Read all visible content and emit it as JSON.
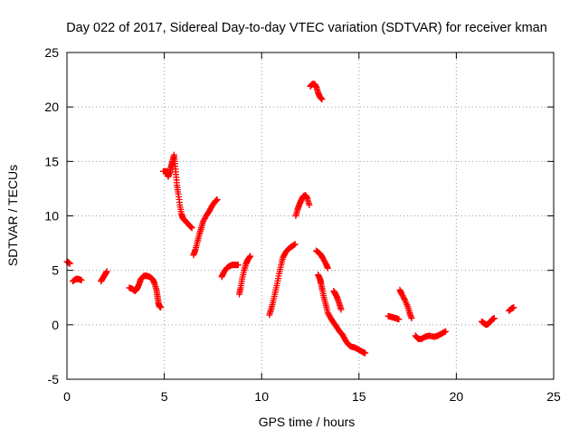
{
  "chart_data": {
    "type": "scatter",
    "title": "Day 022 of 2017, Sidereal Day-to-day VTEC variation (SDTVAR) for receiver kman",
    "xlabel": "GPS time / hours",
    "ylabel": "SDTVAR / TECUs",
    "xlim": [
      0,
      25
    ],
    "ylim": [
      -5,
      25
    ],
    "xticks": [
      0,
      5,
      10,
      15,
      20,
      25
    ],
    "yticks": [
      -5,
      0,
      5,
      10,
      15,
      20,
      25
    ],
    "xtick_labels": [
      "0",
      "5",
      "10",
      "15",
      "20",
      "25"
    ],
    "ytick_labels": [
      "-5",
      "0",
      "5",
      "10",
      "15",
      "20",
      "25"
    ],
    "grid": true,
    "marker": "+",
    "color": "#ff0000",
    "series": [
      {
        "name": "SDTVAR",
        "segments": [
          [
            [
              0.0,
              5.8
            ],
            [
              0.1,
              5.7
            ],
            [
              0.15,
              5.6
            ]
          ],
          [
            [
              0.3,
              4.0
            ],
            [
              0.45,
              4.2
            ],
            [
              0.6,
              4.2
            ],
            [
              0.75,
              4.1
            ]
          ],
          [
            [
              1.75,
              4.0
            ],
            [
              1.85,
              4.3
            ],
            [
              1.95,
              4.6
            ],
            [
              2.05,
              4.9
            ]
          ],
          [
            [
              3.2,
              3.4
            ],
            [
              3.35,
              3.3
            ],
            [
              3.5,
              3.1
            ],
            [
              3.6,
              3.3
            ],
            [
              3.7,
              3.7
            ],
            [
              3.8,
              4.2
            ],
            [
              3.95,
              4.5
            ],
            [
              4.1,
              4.5
            ],
            [
              4.25,
              4.4
            ],
            [
              4.4,
              4.2
            ],
            [
              4.5,
              3.8
            ],
            [
              4.6,
              3.2
            ],
            [
              4.65,
              2.6
            ],
            [
              4.7,
              2.0
            ],
            [
              4.75,
              1.7
            ],
            [
              4.82,
              1.6
            ]
          ],
          [
            [
              4.95,
              14.1
            ],
            [
              5.15,
              14.1
            ],
            [
              5.2,
              13.6
            ],
            [
              5.28,
              14.0
            ],
            [
              5.35,
              14.5
            ],
            [
              5.42,
              15.0
            ],
            [
              5.5,
              15.6
            ],
            [
              5.55,
              14.8
            ],
            [
              5.6,
              13.8
            ],
            [
              5.65,
              12.8
            ],
            [
              5.72,
              12.0
            ],
            [
              5.8,
              11.0
            ],
            [
              5.88,
              10.2
            ],
            [
              5.95,
              9.8
            ],
            [
              6.05,
              9.6
            ],
            [
              6.15,
              9.4
            ],
            [
              6.3,
              9.1
            ],
            [
              6.42,
              8.9
            ]
          ],
          [
            [
              6.5,
              6.4
            ],
            [
              6.6,
              6.9
            ],
            [
              6.7,
              7.6
            ],
            [
              6.8,
              8.3
            ],
            [
              6.9,
              8.9
            ],
            [
              7.0,
              9.5
            ],
            [
              7.15,
              10.0
            ],
            [
              7.3,
              10.4
            ],
            [
              7.45,
              10.9
            ],
            [
              7.6,
              11.3
            ],
            [
              7.72,
              11.5
            ]
          ],
          [
            [
              7.95,
              4.4
            ],
            [
              8.05,
              4.8
            ],
            [
              8.2,
              5.2
            ],
            [
              8.35,
              5.4
            ],
            [
              8.5,
              5.5
            ],
            [
              8.65,
              5.5
            ],
            [
              8.8,
              5.5
            ]
          ],
          [
            [
              8.85,
              2.8
            ],
            [
              8.92,
              3.4
            ],
            [
              9.0,
              4.2
            ],
            [
              9.1,
              5.0
            ],
            [
              9.2,
              5.6
            ],
            [
              9.3,
              6.0
            ],
            [
              9.42,
              6.3
            ]
          ],
          [
            [
              10.4,
              0.9
            ],
            [
              10.5,
              1.5
            ],
            [
              10.6,
              2.2
            ],
            [
              10.7,
              3.0
            ],
            [
              10.8,
              3.8
            ],
            [
              10.9,
              4.7
            ],
            [
              11.0,
              5.5
            ],
            [
              11.1,
              6.2
            ],
            [
              11.25,
              6.7
            ],
            [
              11.4,
              7.0
            ],
            [
              11.55,
              7.2
            ],
            [
              11.72,
              7.4
            ]
          ],
          [
            [
              11.75,
              10.0
            ],
            [
              11.85,
              10.6
            ],
            [
              11.95,
              11.1
            ],
            [
              12.05,
              11.5
            ],
            [
              12.15,
              11.8
            ],
            [
              12.25,
              11.9
            ],
            [
              12.35,
              11.6
            ],
            [
              12.45,
              11.0
            ]
          ],
          [
            [
              12.5,
              21.9
            ],
            [
              12.6,
              22.1
            ],
            [
              12.72,
              22.1
            ],
            [
              12.82,
              21.8
            ],
            [
              12.9,
              21.3
            ],
            [
              13.0,
              20.9
            ],
            [
              13.1,
              20.7
            ]
          ],
          [
            [
              12.8,
              6.8
            ],
            [
              12.95,
              6.6
            ],
            [
              13.05,
              6.4
            ],
            [
              13.15,
              6.1
            ],
            [
              13.3,
              5.6
            ],
            [
              13.4,
              5.2
            ]
          ],
          [
            [
              12.9,
              4.6
            ],
            [
              13.0,
              4.2
            ],
            [
              13.05,
              3.8
            ],
            [
              13.12,
              3.2
            ],
            [
              13.2,
              2.5
            ],
            [
              13.3,
              1.8
            ],
            [
              13.4,
              1.1
            ],
            [
              13.55,
              0.6
            ],
            [
              13.7,
              0.2
            ],
            [
              13.85,
              -0.2
            ],
            [
              14.0,
              -0.6
            ],
            [
              14.15,
              -0.9
            ],
            [
              14.3,
              -1.4
            ],
            [
              14.45,
              -1.8
            ],
            [
              14.6,
              -2.0
            ],
            [
              14.8,
              -2.1
            ],
            [
              15.0,
              -2.3
            ],
            [
              15.2,
              -2.5
            ],
            [
              15.32,
              -2.6
            ]
          ],
          [
            [
              13.7,
              3.1
            ],
            [
              13.8,
              2.8
            ],
            [
              13.9,
              2.4
            ],
            [
              14.0,
              1.9
            ],
            [
              14.08,
              1.4
            ]
          ],
          [
            [
              16.5,
              0.8
            ],
            [
              16.7,
              0.7
            ],
            [
              16.9,
              0.6
            ],
            [
              17.05,
              0.5
            ]
          ],
          [
            [
              17.1,
              3.2
            ],
            [
              17.2,
              2.8
            ],
            [
              17.35,
              2.3
            ],
            [
              17.5,
              1.7
            ],
            [
              17.6,
              1.1
            ],
            [
              17.7,
              0.6
            ]
          ],
          [
            [
              17.9,
              -1.0
            ],
            [
              18.05,
              -1.3
            ],
            [
              18.2,
              -1.3
            ],
            [
              18.4,
              -1.1
            ],
            [
              18.6,
              -1.0
            ],
            [
              18.85,
              -1.1
            ],
            [
              19.05,
              -1.0
            ],
            [
              19.25,
              -0.8
            ],
            [
              19.45,
              -0.6
            ]
          ],
          [
            [
              21.3,
              0.3
            ],
            [
              21.45,
              0.1
            ],
            [
              21.55,
              0.0
            ],
            [
              21.65,
              0.1
            ],
            [
              21.75,
              0.3
            ],
            [
              21.85,
              0.5
            ],
            [
              21.95,
              0.6
            ]
          ],
          [
            [
              22.7,
              1.3
            ],
            [
              22.85,
              1.5
            ],
            [
              22.95,
              1.6
            ]
          ]
        ]
      }
    ]
  }
}
